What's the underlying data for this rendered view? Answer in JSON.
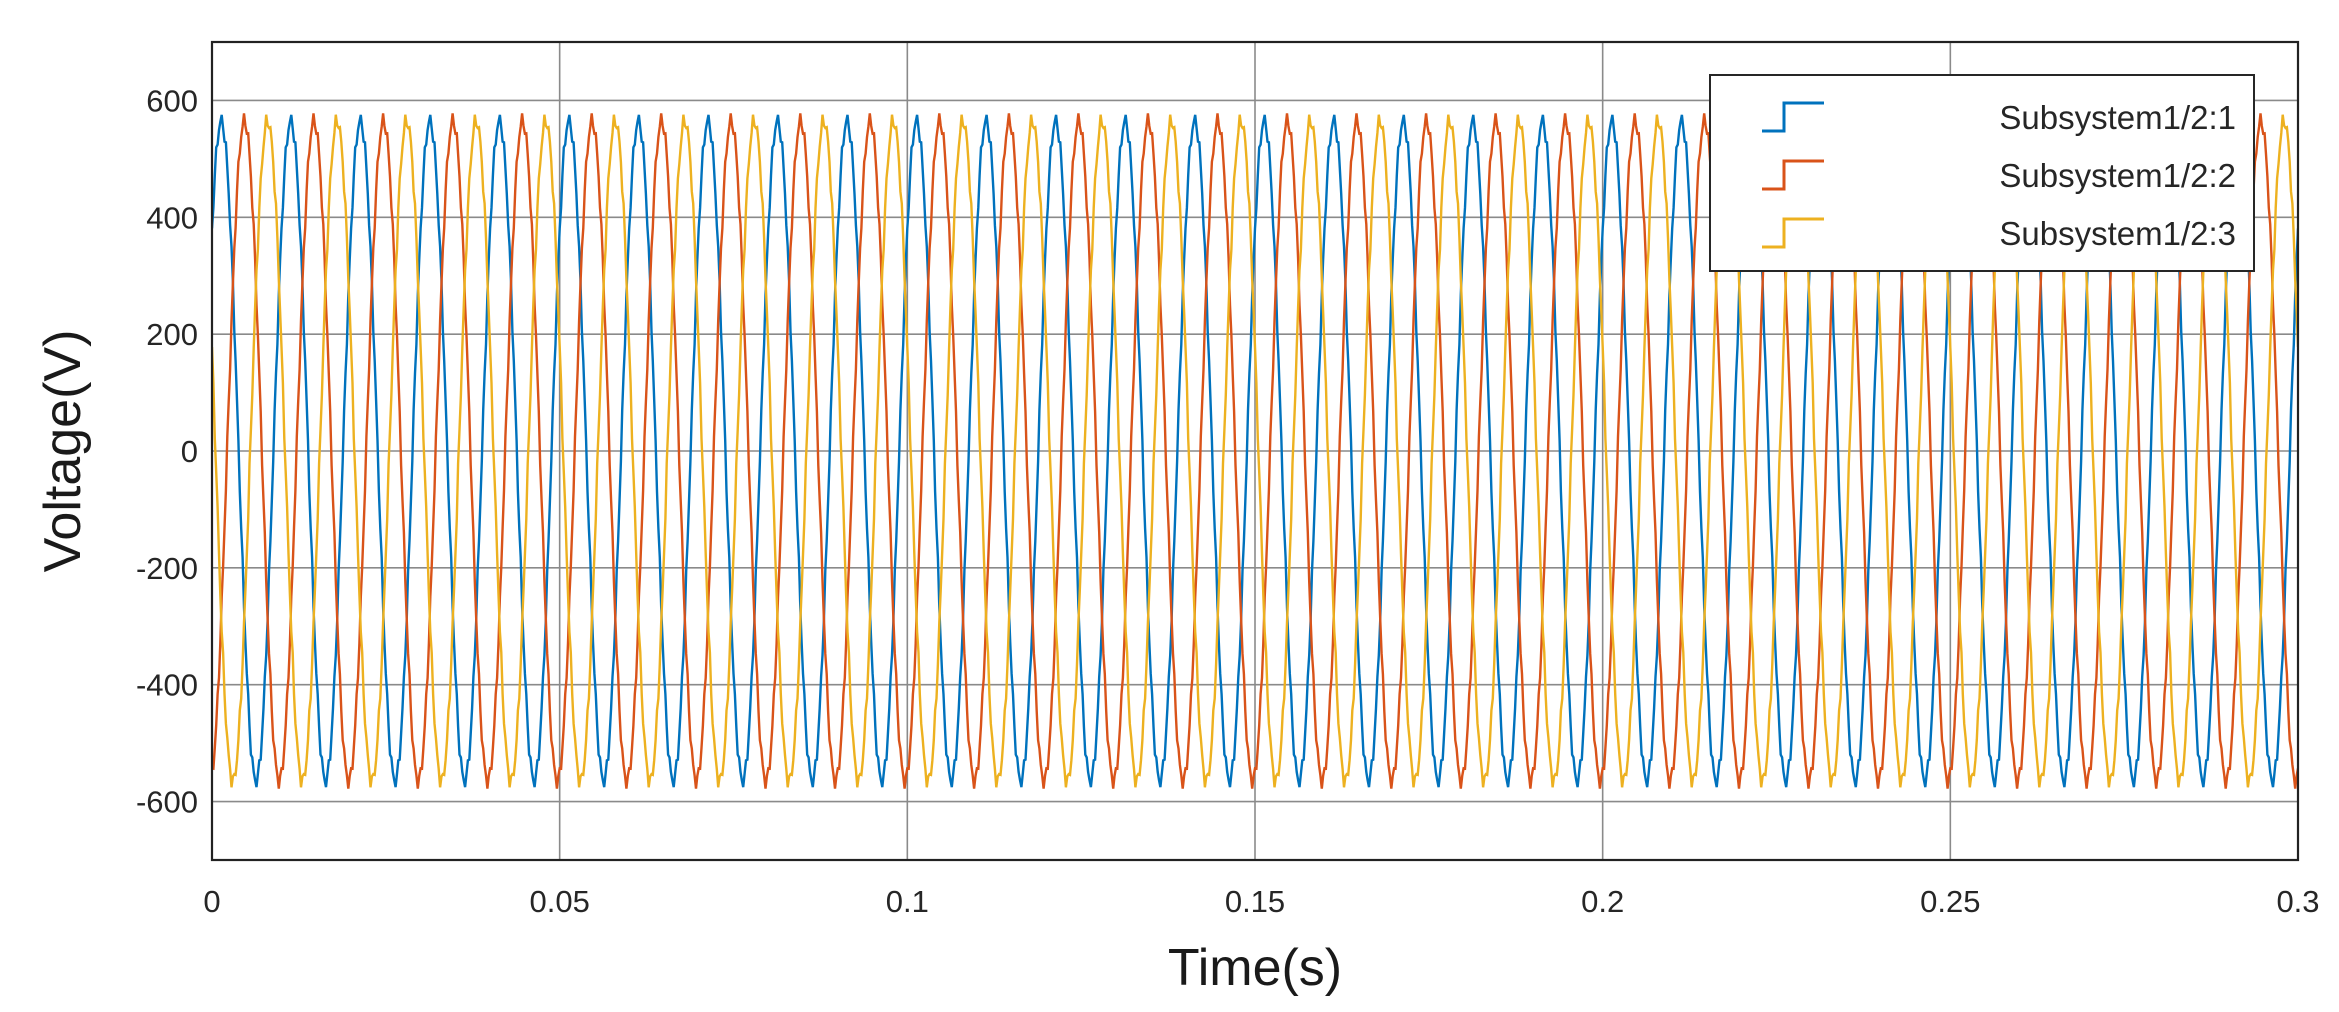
{
  "chart_data": {
    "type": "line",
    "title": "",
    "xlabel": "Time(s)",
    "ylabel": "Voltage(V)",
    "xlim": [
      0,
      0.3
    ],
    "ylim": [
      -700,
      700
    ],
    "xticks": [
      0,
      0.05,
      0.1,
      0.15,
      0.2,
      0.25,
      0.3
    ],
    "xtick_labels": [
      "0",
      "0.05",
      "0.1",
      "0.15",
      "0.2",
      "0.25",
      "0.3"
    ],
    "yticks": [
      600,
      400,
      200,
      0,
      -200,
      -400,
      -600
    ],
    "ytick_labels": [
      "600",
      "400",
      "200",
      "0",
      "-200",
      "-400",
      "-600"
    ],
    "grid": true,
    "legend_position": "top-right",
    "waveform": {
      "frequency_hz": 100,
      "amplitude_v": 565,
      "step_s": 0.0002
    },
    "series": [
      {
        "name": "Subsystem1/2:1",
        "color": "#0072BD",
        "phase_deg": 42
      },
      {
        "name": "Subsystem1/2:2",
        "color": "#D95319",
        "phase_deg": -78
      },
      {
        "name": "Subsystem1/2:3",
        "color": "#EDB120",
        "phase_deg": 162
      }
    ]
  }
}
